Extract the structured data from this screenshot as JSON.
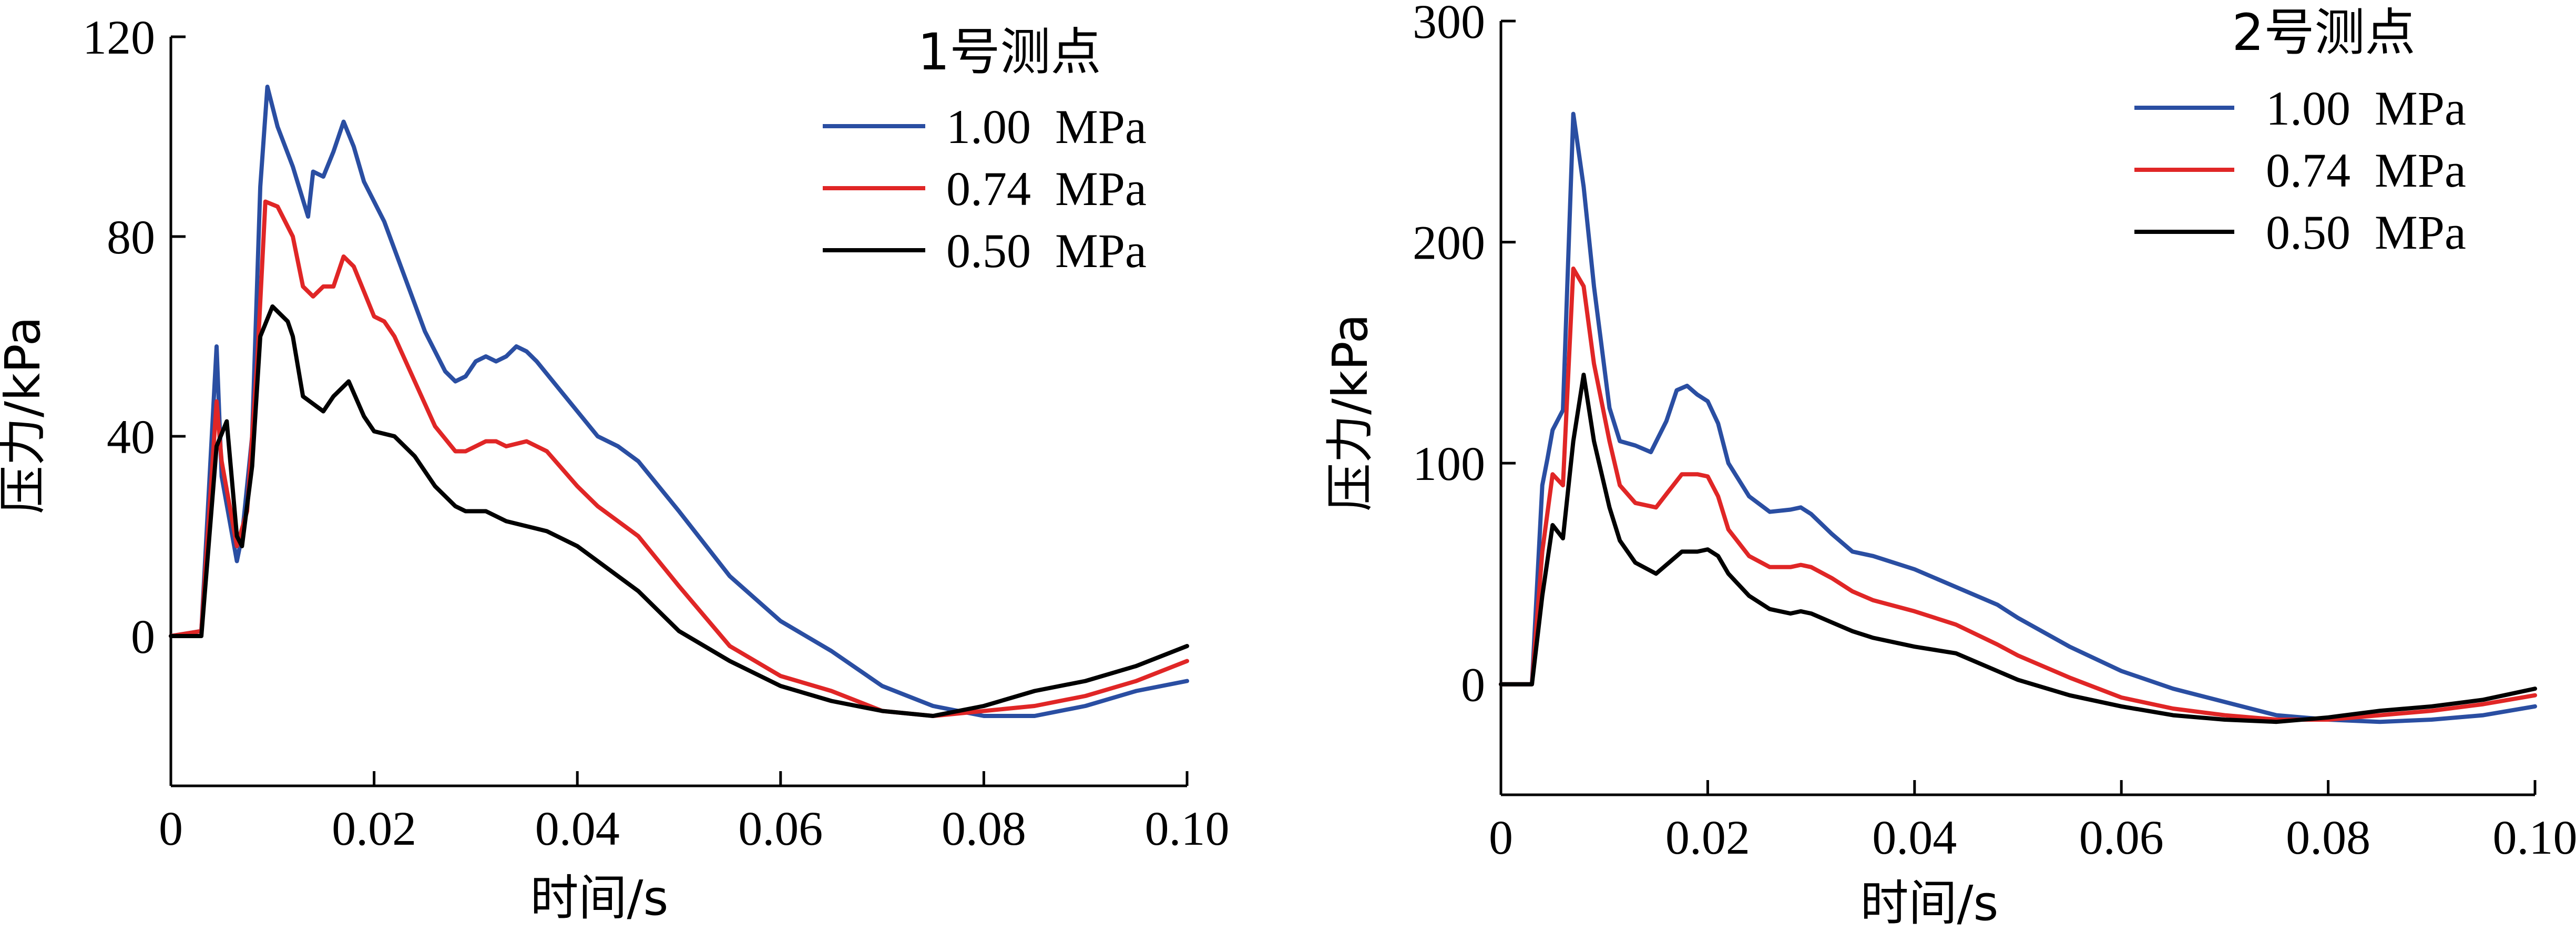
{
  "chart_data": [
    {
      "type": "line",
      "title": "1号测点",
      "xlabel": "时间/s",
      "ylabel": "压力/kPa",
      "xlim": [
        0,
        0.1
      ],
      "ylim": [
        -30,
        120
      ],
      "xticks": [
        0,
        0.02,
        0.04,
        0.06,
        0.08,
        0.1
      ],
      "xtick_labels": [
        "0",
        "0.02",
        "0.04",
        "0.06",
        "0.08",
        "0.10"
      ],
      "yticks": [
        0,
        40,
        80,
        120
      ],
      "ytick_labels": [
        "0",
        "40",
        "80",
        "120"
      ],
      "grid": false,
      "legend_position": "top-right",
      "series": [
        {
          "name": "1.00  MPa",
          "color": "#2a4ea2",
          "points": [
            [
              0,
              0
            ],
            [
              0.003,
              1
            ],
            [
              0.0045,
              58
            ],
            [
              0.005,
              32
            ],
            [
              0.0065,
              15
            ],
            [
              0.007,
              20
            ],
            [
              0.008,
              40
            ],
            [
              0.0088,
              90
            ],
            [
              0.0095,
              110
            ],
            [
              0.0105,
              102
            ],
            [
              0.012,
              94
            ],
            [
              0.0135,
              84
            ],
            [
              0.014,
              93
            ],
            [
              0.015,
              92
            ],
            [
              0.016,
              97
            ],
            [
              0.017,
              103
            ],
            [
              0.018,
              98
            ],
            [
              0.019,
              91
            ],
            [
              0.021,
              83
            ],
            [
              0.023,
              72
            ],
            [
              0.025,
              61
            ],
            [
              0.027,
              53
            ],
            [
              0.028,
              51
            ],
            [
              0.029,
              52
            ],
            [
              0.03,
              55
            ],
            [
              0.031,
              56
            ],
            [
              0.032,
              55
            ],
            [
              0.033,
              56
            ],
            [
              0.034,
              58
            ],
            [
              0.035,
              57
            ],
            [
              0.036,
              55
            ],
            [
              0.038,
              50
            ],
            [
              0.04,
              45
            ],
            [
              0.042,
              40
            ],
            [
              0.044,
              38
            ],
            [
              0.046,
              35
            ],
            [
              0.05,
              25
            ],
            [
              0.055,
              12
            ],
            [
              0.06,
              3
            ],
            [
              0.065,
              -3
            ],
            [
              0.07,
              -10
            ],
            [
              0.075,
              -14
            ],
            [
              0.08,
              -16
            ],
            [
              0.085,
              -16
            ],
            [
              0.09,
              -14
            ],
            [
              0.095,
              -11
            ],
            [
              0.1,
              -9
            ]
          ]
        },
        {
          "name": "0.74  MPa",
          "color": "#e02626",
          "points": [
            [
              0,
              0
            ],
            [
              0.003,
              1
            ],
            [
              0.0045,
              47
            ],
            [
              0.005,
              35
            ],
            [
              0.0065,
              18
            ],
            [
              0.0075,
              25
            ],
            [
              0.0085,
              55
            ],
            [
              0.0093,
              87
            ],
            [
              0.0105,
              86
            ],
            [
              0.012,
              80
            ],
            [
              0.013,
              70
            ],
            [
              0.014,
              68
            ],
            [
              0.015,
              70
            ],
            [
              0.016,
              70
            ],
            [
              0.017,
              76
            ],
            [
              0.018,
              74
            ],
            [
              0.019,
              69
            ],
            [
              0.02,
              64
            ],
            [
              0.021,
              63
            ],
            [
              0.022,
              60
            ],
            [
              0.024,
              51
            ],
            [
              0.026,
              42
            ],
            [
              0.028,
              37
            ],
            [
              0.029,
              37
            ],
            [
              0.03,
              38
            ],
            [
              0.031,
              39
            ],
            [
              0.032,
              39
            ],
            [
              0.033,
              38
            ],
            [
              0.035,
              39
            ],
            [
              0.037,
              37
            ],
            [
              0.04,
              30
            ],
            [
              0.042,
              26
            ],
            [
              0.046,
              20
            ],
            [
              0.05,
              10
            ],
            [
              0.055,
              -2
            ],
            [
              0.06,
              -8
            ],
            [
              0.065,
              -11
            ],
            [
              0.07,
              -15
            ],
            [
              0.075,
              -16
            ],
            [
              0.08,
              -15
            ],
            [
              0.085,
              -14
            ],
            [
              0.09,
              -12
            ],
            [
              0.095,
              -9
            ],
            [
              0.1,
              -5
            ]
          ]
        },
        {
          "name": "0.50  MPa",
          "color": "#000000",
          "points": [
            [
              0,
              0
            ],
            [
              0.003,
              0
            ],
            [
              0.0045,
              38
            ],
            [
              0.0055,
              43
            ],
            [
              0.0065,
              20
            ],
            [
              0.007,
              18
            ],
            [
              0.008,
              34
            ],
            [
              0.0088,
              60
            ],
            [
              0.01,
              66
            ],
            [
              0.0115,
              63
            ],
            [
              0.012,
              60
            ],
            [
              0.013,
              48
            ],
            [
              0.015,
              45
            ],
            [
              0.016,
              48
            ],
            [
              0.0175,
              51
            ],
            [
              0.019,
              44
            ],
            [
              0.02,
              41
            ],
            [
              0.022,
              40
            ],
            [
              0.024,
              36
            ],
            [
              0.026,
              30
            ],
            [
              0.028,
              26
            ],
            [
              0.029,
              25
            ],
            [
              0.03,
              25
            ],
            [
              0.031,
              25
            ],
            [
              0.033,
              23
            ],
            [
              0.035,
              22
            ],
            [
              0.037,
              21
            ],
            [
              0.04,
              18
            ],
            [
              0.042,
              15
            ],
            [
              0.046,
              9
            ],
            [
              0.05,
              1
            ],
            [
              0.055,
              -5
            ],
            [
              0.06,
              -10
            ],
            [
              0.065,
              -13
            ],
            [
              0.07,
              -15
            ],
            [
              0.075,
              -16
            ],
            [
              0.08,
              -14
            ],
            [
              0.085,
              -11
            ],
            [
              0.09,
              -9
            ],
            [
              0.095,
              -6
            ],
            [
              0.1,
              -2
            ]
          ]
        }
      ]
    },
    {
      "type": "line",
      "title": "2号测点",
      "xlabel": "时间/s",
      "ylabel": "压力/kPa",
      "xlim": [
        0,
        0.1
      ],
      "ylim": [
        -50,
        300
      ],
      "xticks": [
        0,
        0.02,
        0.04,
        0.06,
        0.08,
        0.1
      ],
      "xtick_labels": [
        "0",
        "0.02",
        "0.04",
        "0.06",
        "0.08",
        "0.10"
      ],
      "yticks": [
        0,
        100,
        200,
        300
      ],
      "ytick_labels": [
        "0",
        "100",
        "200",
        "300"
      ],
      "grid": false,
      "legend_position": "top-right",
      "series": [
        {
          "name": "1.00  MPa",
          "color": "#2a4ea2",
          "points": [
            [
              0,
              0
            ],
            [
              0.003,
              0
            ],
            [
              0.004,
              90
            ],
            [
              0.0045,
              102
            ],
            [
              0.005,
              115
            ],
            [
              0.006,
              124
            ],
            [
              0.007,
              258
            ],
            [
              0.008,
              225
            ],
            [
              0.009,
              180
            ],
            [
              0.0105,
              125
            ],
            [
              0.0115,
              110
            ],
            [
              0.013,
              108
            ],
            [
              0.0145,
              105
            ],
            [
              0.016,
              119
            ],
            [
              0.017,
              133
            ],
            [
              0.018,
              135
            ],
            [
              0.019,
              131
            ],
            [
              0.02,
              128
            ],
            [
              0.021,
              118
            ],
            [
              0.022,
              100
            ],
            [
              0.024,
              85
            ],
            [
              0.026,
              78
            ],
            [
              0.028,
              79
            ],
            [
              0.029,
              80
            ],
            [
              0.03,
              77
            ],
            [
              0.032,
              68
            ],
            [
              0.034,
              60
            ],
            [
              0.036,
              58
            ],
            [
              0.04,
              52
            ],
            [
              0.044,
              44
            ],
            [
              0.048,
              36
            ],
            [
              0.05,
              30
            ],
            [
              0.055,
              17
            ],
            [
              0.06,
              6
            ],
            [
              0.065,
              -2
            ],
            [
              0.07,
              -8
            ],
            [
              0.075,
              -14
            ],
            [
              0.08,
              -16
            ],
            [
              0.085,
              -17
            ],
            [
              0.09,
              -16
            ],
            [
              0.095,
              -14
            ],
            [
              0.1,
              -10
            ]
          ]
        },
        {
          "name": "0.74  MPa",
          "color": "#e02626",
          "points": [
            [
              0,
              0
            ],
            [
              0.003,
              0
            ],
            [
              0.004,
              60
            ],
            [
              0.005,
              95
            ],
            [
              0.006,
              90
            ],
            [
              0.007,
              188
            ],
            [
              0.008,
              180
            ],
            [
              0.009,
              145
            ],
            [
              0.0105,
              110
            ],
            [
              0.0115,
              90
            ],
            [
              0.013,
              82
            ],
            [
              0.015,
              80
            ],
            [
              0.016,
              86
            ],
            [
              0.0175,
              95
            ],
            [
              0.019,
              95
            ],
            [
              0.02,
              94
            ],
            [
              0.021,
              85
            ],
            [
              0.022,
              70
            ],
            [
              0.024,
              58
            ],
            [
              0.026,
              53
            ],
            [
              0.028,
              53
            ],
            [
              0.029,
              54
            ],
            [
              0.03,
              53
            ],
            [
              0.032,
              48
            ],
            [
              0.034,
              42
            ],
            [
              0.036,
              38
            ],
            [
              0.04,
              33
            ],
            [
              0.044,
              27
            ],
            [
              0.048,
              18
            ],
            [
              0.05,
              13
            ],
            [
              0.055,
              3
            ],
            [
              0.06,
              -6
            ],
            [
              0.065,
              -11
            ],
            [
              0.07,
              -14
            ],
            [
              0.075,
              -16
            ],
            [
              0.08,
              -16
            ],
            [
              0.085,
              -14
            ],
            [
              0.09,
              -12
            ],
            [
              0.095,
              -9
            ],
            [
              0.1,
              -5
            ]
          ]
        },
        {
          "name": "0.50  MPa",
          "color": "#000000",
          "points": [
            [
              0,
              0
            ],
            [
              0.003,
              0
            ],
            [
              0.004,
              40
            ],
            [
              0.005,
              72
            ],
            [
              0.006,
              66
            ],
            [
              0.007,
              110
            ],
            [
              0.008,
              140
            ],
            [
              0.009,
              110
            ],
            [
              0.0105,
              80
            ],
            [
              0.0115,
              65
            ],
            [
              0.013,
              55
            ],
            [
              0.015,
              50
            ],
            [
              0.016,
              54
            ],
            [
              0.0175,
              60
            ],
            [
              0.019,
              60
            ],
            [
              0.02,
              61
            ],
            [
              0.021,
              58
            ],
            [
              0.022,
              50
            ],
            [
              0.024,
              40
            ],
            [
              0.026,
              34
            ],
            [
              0.028,
              32
            ],
            [
              0.029,
              33
            ],
            [
              0.03,
              32
            ],
            [
              0.032,
              28
            ],
            [
              0.034,
              24
            ],
            [
              0.036,
              21
            ],
            [
              0.04,
              17
            ],
            [
              0.044,
              14
            ],
            [
              0.048,
              6
            ],
            [
              0.05,
              2
            ],
            [
              0.055,
              -5
            ],
            [
              0.06,
              -10
            ],
            [
              0.065,
              -14
            ],
            [
              0.07,
              -16
            ],
            [
              0.075,
              -17
            ],
            [
              0.08,
              -15
            ],
            [
              0.085,
              -12
            ],
            [
              0.09,
              -10
            ],
            [
              0.095,
              -7
            ],
            [
              0.1,
              -2
            ]
          ]
        }
      ]
    }
  ]
}
